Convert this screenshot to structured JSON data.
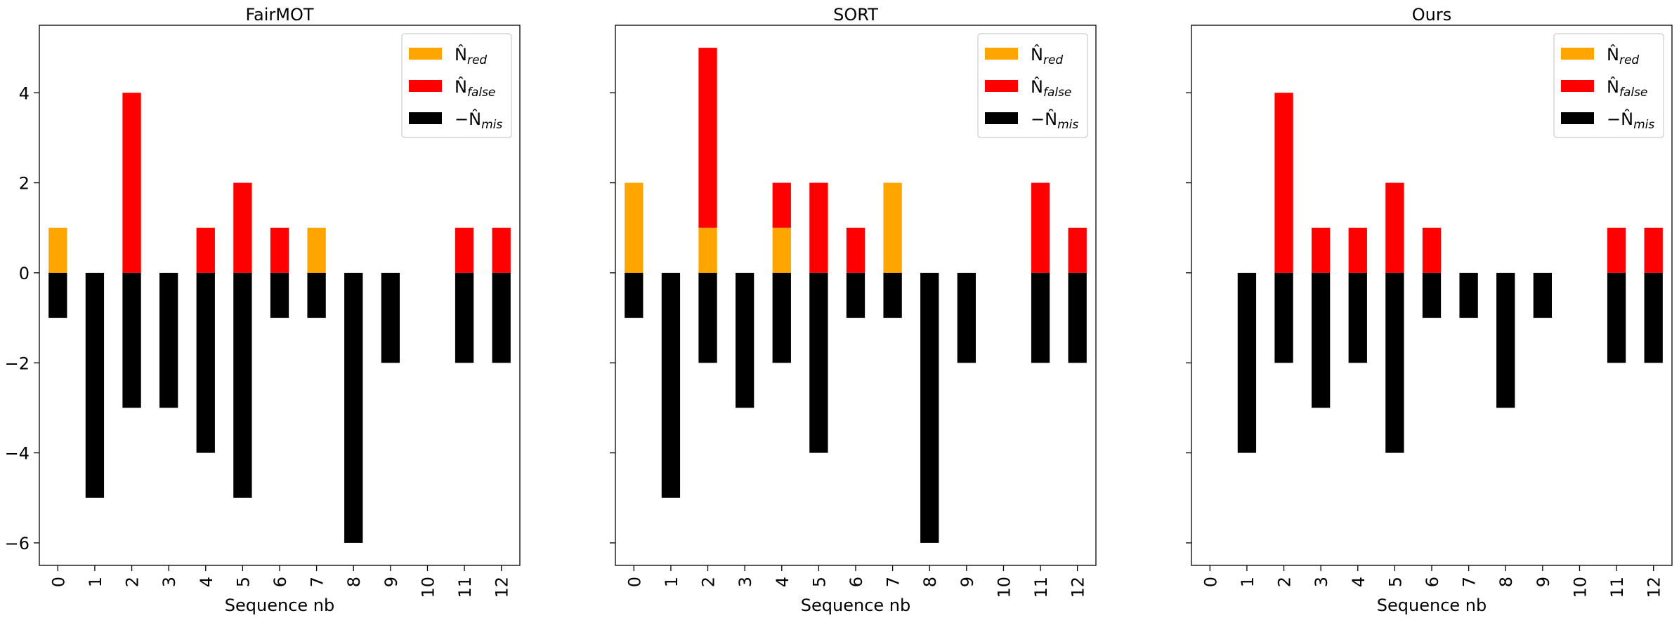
{
  "colors": {
    "red": "#FFA500",
    "false": "#FF0000",
    "mis": "#000000"
  },
  "legend": {
    "red": {
      "base": "N̂",
      "sub": "red",
      "prefix": ""
    },
    "false": {
      "base": "N̂",
      "sub": "false",
      "prefix": ""
    },
    "mis": {
      "base": "N̂",
      "sub": "mis",
      "prefix": "−"
    }
  },
  "chart_data": [
    {
      "type": "bar",
      "stacked": true,
      "title": "FairMOT",
      "xlabel": "Sequence nb",
      "ylabel": "",
      "ylim": [
        -6.5,
        5.5
      ],
      "yticks": [
        -6,
        -4,
        -2,
        0,
        2,
        4
      ],
      "ytick_labels": [
        "−6",
        "−4",
        "−2",
        "0",
        "2",
        "4"
      ],
      "show_ytick_labels": true,
      "legend_position": "top-right",
      "categories": [
        "0",
        "1",
        "2",
        "3",
        "4",
        "5",
        "6",
        "7",
        "8",
        "9",
        "10",
        "11",
        "12"
      ],
      "series": [
        {
          "key": "red",
          "name": "N̂red",
          "values": [
            1,
            0,
            0,
            0,
            0,
            0,
            0,
            1,
            0,
            0,
            0,
            0,
            0
          ]
        },
        {
          "key": "false",
          "name": "N̂false",
          "values": [
            0,
            0,
            4,
            0,
            1,
            2,
            1,
            0,
            0,
            0,
            0,
            1,
            1
          ]
        },
        {
          "key": "mis",
          "name": "−N̂mis",
          "values": [
            -1,
            -5,
            -3,
            -3,
            -4,
            -5,
            -1,
            -1,
            -6,
            -2,
            0,
            -2,
            -2
          ]
        }
      ]
    },
    {
      "type": "bar",
      "stacked": true,
      "title": "SORT",
      "xlabel": "Sequence nb",
      "ylabel": "",
      "ylim": [
        -6.5,
        5.5
      ],
      "yticks": [
        -6,
        -4,
        -2,
        0,
        2,
        4
      ],
      "ytick_labels": [
        "−6",
        "−4",
        "−2",
        "0",
        "2",
        "4"
      ],
      "show_ytick_labels": false,
      "legend_position": "top-right",
      "categories": [
        "0",
        "1",
        "2",
        "3",
        "4",
        "5",
        "6",
        "7",
        "8",
        "9",
        "10",
        "11",
        "12"
      ],
      "series": [
        {
          "key": "red",
          "name": "N̂red",
          "values": [
            2,
            0,
            1,
            0,
            1,
            0,
            0,
            2,
            0,
            0,
            0,
            0,
            0
          ]
        },
        {
          "key": "false",
          "name": "N̂false",
          "values": [
            0,
            0,
            4,
            0,
            1,
            2,
            1,
            0,
            0,
            0,
            0,
            2,
            1
          ]
        },
        {
          "key": "mis",
          "name": "−N̂mis",
          "values": [
            -1,
            -5,
            -2,
            -3,
            -2,
            -4,
            -1,
            -1,
            -6,
            -2,
            0,
            -2,
            -2
          ]
        }
      ]
    },
    {
      "type": "bar",
      "stacked": true,
      "title": "Ours",
      "xlabel": "Sequence nb",
      "ylabel": "",
      "ylim": [
        -6.5,
        5.5
      ],
      "yticks": [
        -6,
        -4,
        -2,
        0,
        2,
        4
      ],
      "ytick_labels": [
        "−6",
        "−4",
        "−2",
        "0",
        "2",
        "4"
      ],
      "show_ytick_labels": false,
      "legend_position": "top-right",
      "categories": [
        "0",
        "1",
        "2",
        "3",
        "4",
        "5",
        "6",
        "7",
        "8",
        "9",
        "10",
        "11",
        "12"
      ],
      "series": [
        {
          "key": "red",
          "name": "N̂red",
          "values": [
            0,
            0,
            0,
            0,
            0,
            0,
            0,
            0,
            0,
            0,
            0,
            0,
            0
          ]
        },
        {
          "key": "false",
          "name": "N̂false",
          "values": [
            0,
            0,
            4,
            1,
            1,
            2,
            1,
            0,
            0,
            0,
            0,
            1,
            1
          ]
        },
        {
          "key": "mis",
          "name": "−N̂mis",
          "values": [
            0,
            -4,
            -2,
            -3,
            -2,
            -4,
            -1,
            -1,
            -3,
            -1,
            0,
            -2,
            -2
          ]
        }
      ]
    }
  ]
}
